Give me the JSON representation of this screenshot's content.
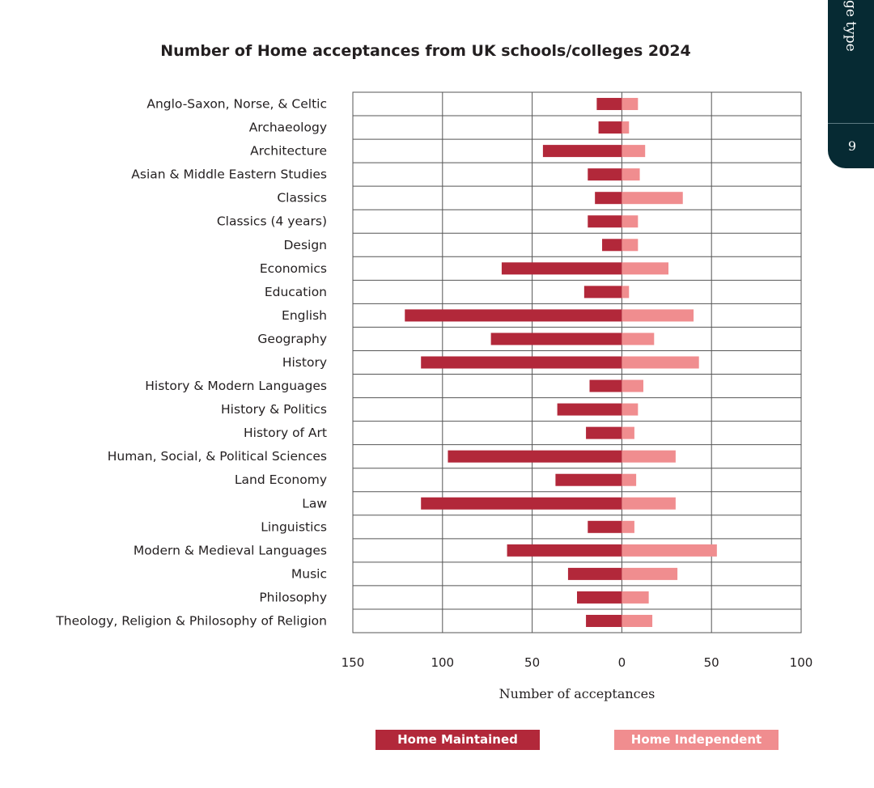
{
  "side_tab": {
    "label": "ge type",
    "page_number": "9"
  },
  "colors": {
    "maintained": "#b2283a",
    "independent": "#f08d8f",
    "grid": "#555555",
    "tab": "#062a33"
  },
  "chart_data": {
    "type": "bar",
    "orientation": "horizontal-diverging",
    "title": "Number of Home acceptances from UK schools/colleges 2024",
    "xlabel": "Number of acceptances",
    "ylabel": "",
    "xlim": [
      -150,
      100
    ],
    "xticks": [
      -150,
      -100,
      -50,
      0,
      50,
      100
    ],
    "xtick_labels": [
      "150",
      "100",
      "50",
      "0",
      "50",
      "100"
    ],
    "grid": true,
    "legend_position": "bottom",
    "categories": [
      "Anglo-Saxon, Norse, & Celtic",
      "Archaeology",
      "Architecture",
      "Asian & Middle Eastern Studies",
      "Classics",
      "Classics (4 years)",
      "Design",
      "Economics",
      "Education",
      "English",
      "Geography",
      "History",
      "History & Modern Languages",
      "History & Politics",
      "History of Art",
      "Human, Social, & Political Sciences",
      "Land Economy",
      "Law",
      "Linguistics",
      "Modern & Medieval Languages",
      "Music",
      "Philosophy",
      "Theology, Religion & Philosophy of Religion"
    ],
    "series": [
      {
        "name": "Home Maintained",
        "direction": "left",
        "values": [
          14,
          13,
          44,
          19,
          15,
          19,
          11,
          67,
          21,
          121,
          73,
          112,
          18,
          36,
          20,
          97,
          37,
          112,
          19,
          64,
          30,
          25,
          20
        ]
      },
      {
        "name": "Home Independent",
        "direction": "right",
        "values": [
          9,
          4,
          13,
          10,
          34,
          9,
          9,
          26,
          4,
          40,
          18,
          43,
          12,
          9,
          7,
          30,
          8,
          30,
          7,
          53,
          31,
          15,
          17
        ]
      }
    ]
  }
}
